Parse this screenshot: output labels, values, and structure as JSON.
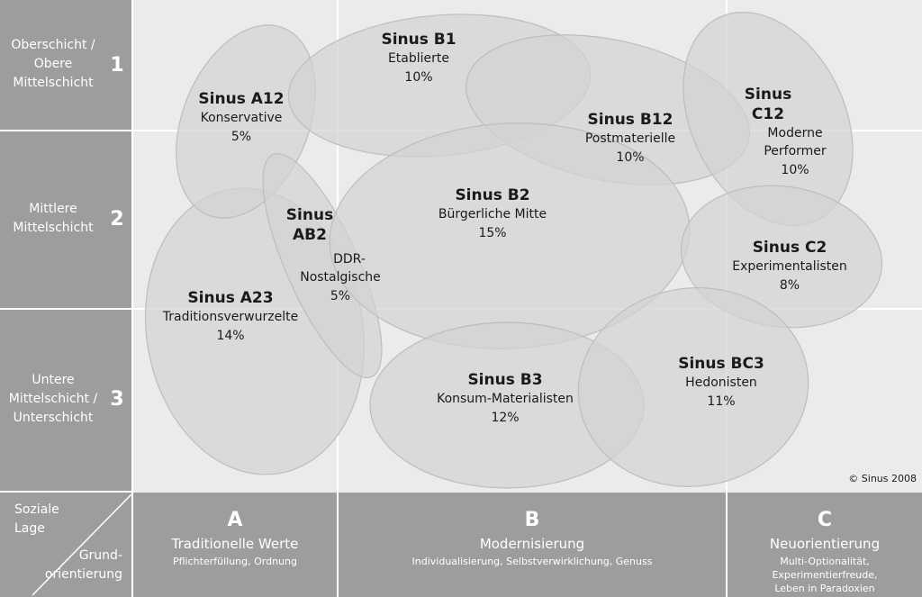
{
  "rows": [
    {
      "lines": [
        "Oberschicht /",
        "Obere",
        "Mittelschicht"
      ],
      "num": "1"
    },
    {
      "lines": [
        "Mittlere",
        "Mittelschicht"
      ],
      "num": "2"
    },
    {
      "lines": [
        "Untere",
        "Mittelschicht /",
        "Unterschicht"
      ],
      "num": "3"
    }
  ],
  "corner": {
    "top_lines": [
      "Soziale",
      "Lage"
    ],
    "bottom_lines": [
      "Grund-",
      "orientierung"
    ]
  },
  "columns": [
    {
      "letter": "A",
      "title": "Traditionelle Werte",
      "desc_lines": [
        "Pflichterfüllung, Ordnung"
      ]
    },
    {
      "letter": "B",
      "title": "Modernisierung",
      "desc_lines": [
        "Individualisierung, Selbstverwirklichung, Genuss"
      ]
    },
    {
      "letter": "C",
      "title": "Neuorientierung",
      "desc_lines": [
        "Multi-Optionalität, Experimentierfreude,",
        "Leben in Paradoxien"
      ]
    }
  ],
  "milieus": [
    {
      "id": "a12",
      "name_lines": [
        "Sinus A12"
      ],
      "label_lines": [
        "Konservative"
      ],
      "percent": "5%"
    },
    {
      "id": "b1",
      "name_lines": [
        "Sinus B1"
      ],
      "label_lines": [
        "Etablierte"
      ],
      "percent": "10%"
    },
    {
      "id": "b12",
      "name_lines": [
        "Sinus B12"
      ],
      "label_lines": [
        "Postmaterielle"
      ],
      "percent": "10%"
    },
    {
      "id": "c12",
      "name_lines": [
        "Sinus",
        "C12"
      ],
      "label_lines": [
        "Moderne",
        "Performer"
      ],
      "percent": "10%"
    },
    {
      "id": "ab2",
      "name_lines": [
        "Sinus",
        "AB2"
      ],
      "label_lines": [
        "DDR-",
        "Nostalgische"
      ],
      "percent": "5%"
    },
    {
      "id": "b2",
      "name_lines": [
        "Sinus B2"
      ],
      "label_lines": [
        "Bürgerliche Mitte"
      ],
      "percent": "15%"
    },
    {
      "id": "c2",
      "name_lines": [
        "Sinus C2"
      ],
      "label_lines": [
        "Experimentalisten"
      ],
      "percent": "8%"
    },
    {
      "id": "a23",
      "name_lines": [
        "Sinus A23"
      ],
      "label_lines": [
        "Traditionsverwurzelte"
      ],
      "percent": "14%"
    },
    {
      "id": "b3",
      "name_lines": [
        "Sinus B3"
      ],
      "label_lines": [
        "Konsum-Materialisten"
      ],
      "percent": "12%"
    },
    {
      "id": "bc3",
      "name_lines": [
        "Sinus BC3"
      ],
      "label_lines": [
        "Hedonisten"
      ],
      "percent": "11%"
    }
  ],
  "copyright": "© Sinus 2008",
  "colors": {
    "panel": "#9d9d9d",
    "plot_background": "#ebebeb",
    "blob_fill": "#d3d3d3",
    "blob_stroke": "#bdbdbd"
  }
}
